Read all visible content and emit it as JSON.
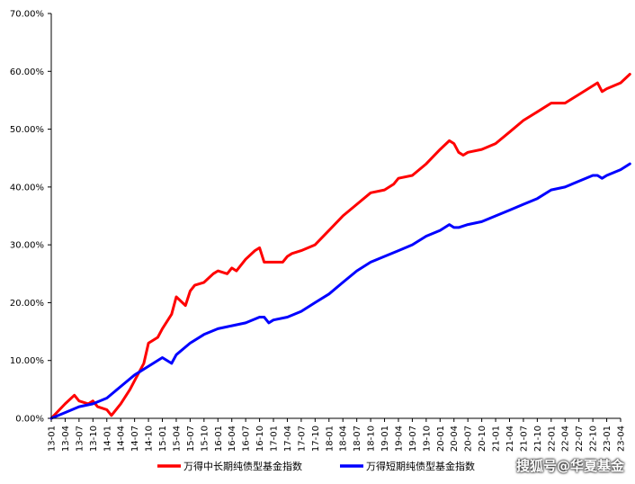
{
  "chart_data": {
    "type": "line",
    "ylim": [
      0,
      70
    ],
    "y_ticks": [
      "0.00%",
      "10.00%",
      "20.00%",
      "30.00%",
      "40.00%",
      "50.00%",
      "60.00%",
      "70.00%"
    ],
    "x_ticks": [
      "13-01",
      "13-04",
      "13-07",
      "13-10",
      "14-01",
      "14-04",
      "14-07",
      "14-10",
      "15-01",
      "15-04",
      "15-07",
      "15-10",
      "16-01",
      "16-04",
      "16-07",
      "16-10",
      "17-01",
      "17-04",
      "17-07",
      "17-10",
      "18-01",
      "18-04",
      "18-07",
      "18-10",
      "19-01",
      "19-04",
      "19-07",
      "19-10",
      "20-01",
      "20-04",
      "20-07",
      "20-10",
      "21-01",
      "21-04",
      "21-07",
      "21-10",
      "22-01",
      "22-04",
      "22-07",
      "22-10",
      "23-01",
      "23-04"
    ],
    "grid": false,
    "legend_position": "bottom",
    "series": [
      {
        "name": "万得中长期纯债型基金指数",
        "color": "#ff0000",
        "x": [
          "13-01",
          "13-04",
          "13-06",
          "13-07",
          "13-09",
          "13-10",
          "13-11",
          "14-01",
          "14-02",
          "14-04",
          "14-06",
          "14-07",
          "14-09",
          "14-10",
          "14-12",
          "15-01",
          "15-03",
          "15-04",
          "15-06",
          "15-07",
          "15-08",
          "15-10",
          "15-12",
          "16-01",
          "16-03",
          "16-04",
          "16-05",
          "16-07",
          "16-09",
          "16-10",
          "16-11",
          "16-12",
          "17-01",
          "17-03",
          "17-04",
          "17-05",
          "17-07",
          "17-10",
          "18-01",
          "18-04",
          "18-07",
          "18-10",
          "19-01",
          "19-03",
          "19-04",
          "19-07",
          "19-10",
          "20-01",
          "20-03",
          "20-04",
          "20-05",
          "20-06",
          "20-07",
          "20-10",
          "21-01",
          "21-04",
          "21-07",
          "21-10",
          "22-01",
          "22-04",
          "22-07",
          "22-10",
          "22-11",
          "22-12",
          "23-01",
          "23-04",
          "23-06"
        ],
        "values": [
          0.0,
          2.5,
          4.0,
          3.0,
          2.5,
          3.0,
          2.0,
          1.5,
          0.5,
          2.5,
          5.0,
          6.5,
          9.5,
          13.0,
          14.0,
          15.5,
          18.0,
          21.0,
          19.5,
          22.0,
          23.0,
          23.5,
          25.0,
          25.5,
          25.0,
          26.0,
          25.5,
          27.5,
          29.0,
          29.5,
          27.0,
          27.0,
          27.0,
          27.0,
          28.0,
          28.5,
          29.0,
          30.0,
          32.5,
          35.0,
          37.0,
          39.0,
          39.5,
          40.5,
          41.5,
          42.0,
          44.0,
          46.5,
          48.0,
          47.5,
          46.0,
          45.5,
          46.0,
          46.5,
          47.5,
          49.5,
          51.5,
          53.0,
          54.5,
          54.5,
          56.0,
          57.5,
          58.0,
          56.5,
          57.0,
          58.0,
          59.5
        ]
      },
      {
        "name": "万得短期纯债型基金指数",
        "color": "#0000ff",
        "x": [
          "13-01",
          "13-04",
          "13-07",
          "13-10",
          "14-01",
          "14-04",
          "14-07",
          "14-10",
          "15-01",
          "15-03",
          "15-04",
          "15-07",
          "15-10",
          "16-01",
          "16-04",
          "16-07",
          "16-10",
          "16-11",
          "16-12",
          "17-01",
          "17-04",
          "17-07",
          "17-10",
          "18-01",
          "18-04",
          "18-07",
          "18-10",
          "19-01",
          "19-04",
          "19-07",
          "19-10",
          "20-01",
          "20-03",
          "20-04",
          "20-05",
          "20-07",
          "20-10",
          "21-01",
          "21-04",
          "21-07",
          "21-10",
          "22-01",
          "22-04",
          "22-07",
          "22-10",
          "22-11",
          "22-12",
          "23-01",
          "23-04",
          "23-06"
        ],
        "values": [
          0.0,
          1.0,
          2.0,
          2.5,
          3.5,
          5.5,
          7.5,
          9.0,
          10.5,
          9.5,
          11.0,
          13.0,
          14.5,
          15.5,
          16.0,
          16.5,
          17.5,
          17.5,
          16.5,
          17.0,
          17.5,
          18.5,
          20.0,
          21.5,
          23.5,
          25.5,
          27.0,
          28.0,
          29.0,
          30.0,
          31.5,
          32.5,
          33.5,
          33.0,
          33.0,
          33.5,
          34.0,
          35.0,
          36.0,
          37.0,
          38.0,
          39.5,
          40.0,
          41.0,
          42.0,
          42.0,
          41.5,
          42.0,
          43.0,
          44.0
        ]
      }
    ]
  },
  "watermark": "搜狐号@华夏基金"
}
